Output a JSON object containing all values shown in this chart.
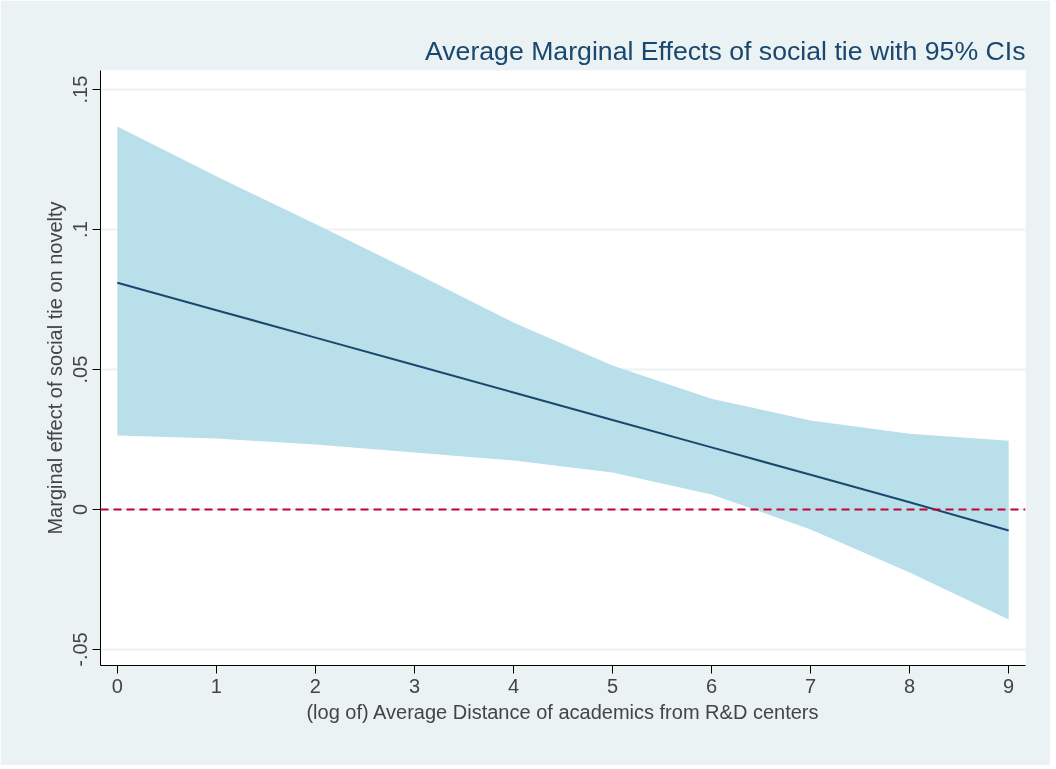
{
  "chart_data": {
    "type": "line",
    "title": "Average Marginal Effects of social tie with 95% CIs",
    "xlabel": "(log of) Average Distance of academics from R&D centers",
    "ylabel": "Marginal effect of social tie on novelty",
    "x": [
      0,
      1,
      2,
      3,
      4,
      5,
      6,
      7,
      8,
      9
    ],
    "series": [
      {
        "color": "#1a476f",
        "values": [
          0.081,
          0.0712,
          0.0614,
          0.0516,
          0.0418,
          0.032,
          0.0222,
          0.0124,
          0.0026,
          -0.0075
        ],
        "lower": [
          0.0264,
          0.0254,
          0.0232,
          0.0204,
          0.0175,
          0.0132,
          0.0054,
          -0.0071,
          -0.0225,
          -0.0393
        ],
        "upper": [
          0.1368,
          0.119,
          0.102,
          0.0846,
          0.0668,
          0.0514,
          0.0396,
          0.0318,
          0.0271,
          0.0246
        ]
      }
    ],
    "xlim": [
      -0.17,
      9.17
    ],
    "ylim": [
      -0.0557,
      0.1568
    ],
    "xticks": [
      0,
      1,
      2,
      3,
      4,
      5,
      6,
      7,
      8,
      9
    ],
    "yticks": [
      {
        "value": -0.05,
        "label": "-.05"
      },
      0,
      {
        "value": 0.05,
        "label": ".05"
      },
      {
        "value": 0.1,
        "label": ".1"
      },
      {
        "value": 0.15,
        "label": ".15"
      }
    ],
    "ref_lines": [
      {
        "axis": "y",
        "value": 0,
        "color": "#c10534",
        "line_style": "dashed"
      }
    ],
    "grid": "y",
    "marker": "none",
    "line_style": "solid"
  }
}
